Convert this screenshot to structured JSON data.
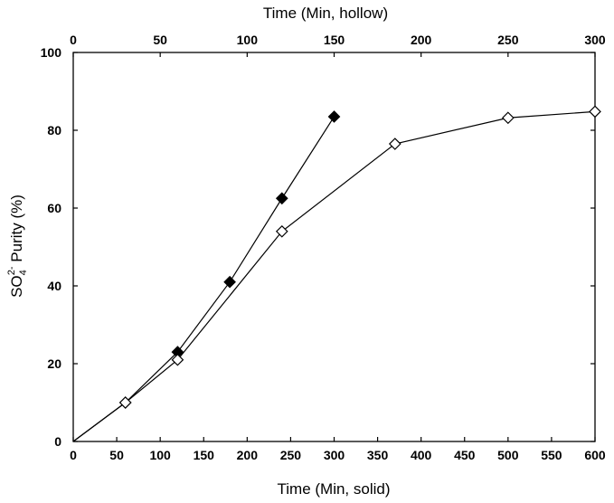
{
  "chart_data": {
    "type": "scatter",
    "x_bottom_label": "Time (Min, solid)",
    "x_top_label": "Time (Min, hollow)",
    "ylabel": "SO42- Purity (%)",
    "ylabel_parts": {
      "base": "SO",
      "subscript": "4",
      "superscript": "2-",
      "rest": " Purity (%)"
    },
    "x_bottom_lim": [
      0,
      600
    ],
    "x_top_lim": [
      0,
      300
    ],
    "ylim": [
      0,
      100
    ],
    "x_bottom_ticks": [
      0,
      50,
      100,
      150,
      200,
      250,
      300,
      350,
      400,
      450,
      500,
      550,
      600
    ],
    "x_top_ticks": [
      0,
      50,
      100,
      150,
      200,
      250,
      300
    ],
    "y_ticks": [
      0,
      20,
      40,
      60,
      80,
      100
    ],
    "grid": false,
    "legend": "none",
    "series": [
      {
        "marker": "filled-diamond",
        "x_axis": "bottom",
        "color": "#000000",
        "x": [
          0,
          60,
          120,
          180,
          240,
          300
        ],
        "y": [
          0,
          10,
          23,
          41,
          62.5,
          83.5
        ]
      },
      {
        "marker": "hollow-diamond",
        "x_axis": "top",
        "color": "#000000",
        "x": [
          0,
          30,
          60,
          120,
          185,
          250,
          300
        ],
        "y": [
          0,
          10,
          21,
          54,
          76.5,
          83.2,
          84.8
        ]
      }
    ]
  }
}
